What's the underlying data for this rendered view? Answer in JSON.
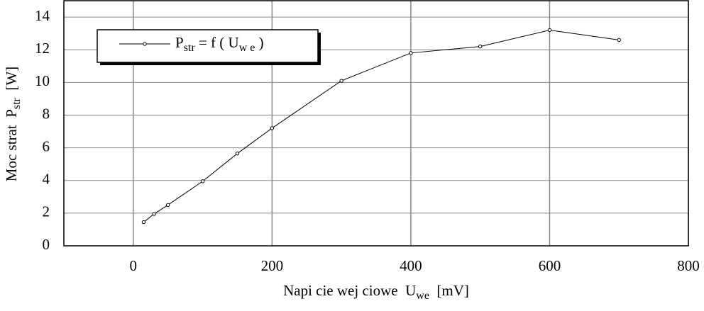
{
  "chart_data": {
    "type": "line",
    "x_label": [
      {
        "text": "Napi cie wej ciowe  U"
      },
      {
        "text": "we",
        "sub": true
      },
      {
        "text": "  [mV]"
      }
    ],
    "y_label": [
      {
        "text": "Moc strat  P"
      },
      {
        "text": "str",
        "sub": true
      },
      {
        "text": "  [W]"
      }
    ],
    "series": [
      {
        "name": [
          {
            "text": "P"
          },
          {
            "text": "str",
            "sub": true
          },
          {
            "text": " = f ( U"
          },
          {
            "text": "w e",
            "sub": true
          },
          {
            "text": " )"
          }
        ],
        "color": "#000000",
        "x": [
          15,
          30,
          50,
          100,
          150,
          200,
          300,
          400,
          500,
          600,
          700
        ],
        "values": [
          1.45,
          1.95,
          2.5,
          3.95,
          5.65,
          7.2,
          10.1,
          11.8,
          12.2,
          13.2,
          12.6
        ]
      }
    ],
    "xlim": [
      -100,
      800
    ],
    "xticks": [
      0,
      200,
      400,
      600,
      800
    ],
    "ylim": [
      0,
      15
    ],
    "yticks": [
      0,
      2,
      4,
      6,
      8,
      10,
      12,
      14
    ],
    "grid": true,
    "legend": "upper left"
  }
}
